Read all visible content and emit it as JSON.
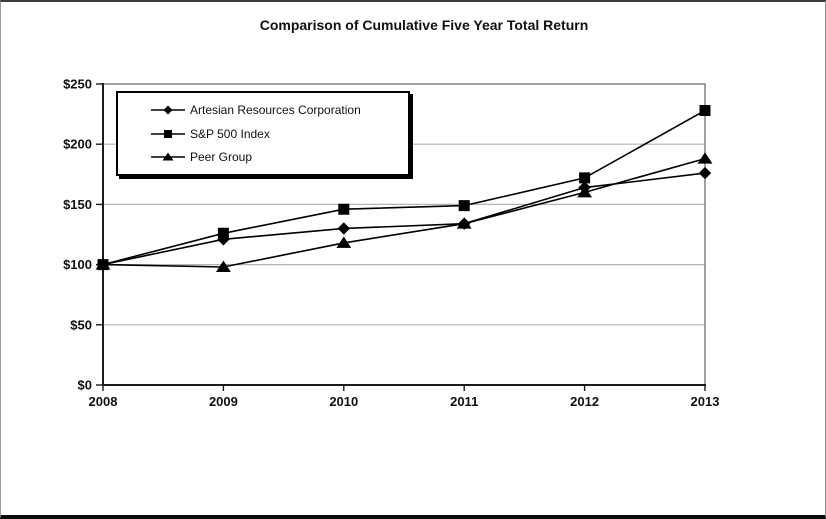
{
  "window": {
    "background": "#ffffff",
    "frame_border_color": "#000000"
  },
  "chart_data": {
    "type": "line",
    "title": "Comparison of Cumulative Five Year Total Return",
    "x": [
      2008,
      2009,
      2010,
      2011,
      2012,
      2013
    ],
    "x_tick_labels": [
      "2008",
      "2009",
      "2010",
      "2011",
      "2012",
      "2013"
    ],
    "y_tick_values": [
      0,
      50,
      100,
      150,
      200,
      250
    ],
    "y_tick_labels": [
      "$0",
      "$50",
      "$100",
      "$150",
      "$200",
      "$250"
    ],
    "ylim": [
      0,
      250
    ],
    "grid": "horizontal",
    "grid_color": "#b3b3b3",
    "line_color": "#000000",
    "axis_color": "#1a1a1a",
    "plot_border_color": "#6e6e6e",
    "legend_position": "top-left-inside",
    "series": [
      {
        "name": "Artesian Resources Corporation",
        "marker": "diamond",
        "values": [
          100,
          121,
          130,
          134,
          164,
          176
        ]
      },
      {
        "name": "S&P 500 Index",
        "marker": "square",
        "values": [
          100,
          126,
          146,
          149,
          172,
          228
        ]
      },
      {
        "name": "Peer Group",
        "marker": "triangle",
        "values": [
          100,
          98,
          118,
          134,
          160,
          188
        ]
      }
    ]
  }
}
